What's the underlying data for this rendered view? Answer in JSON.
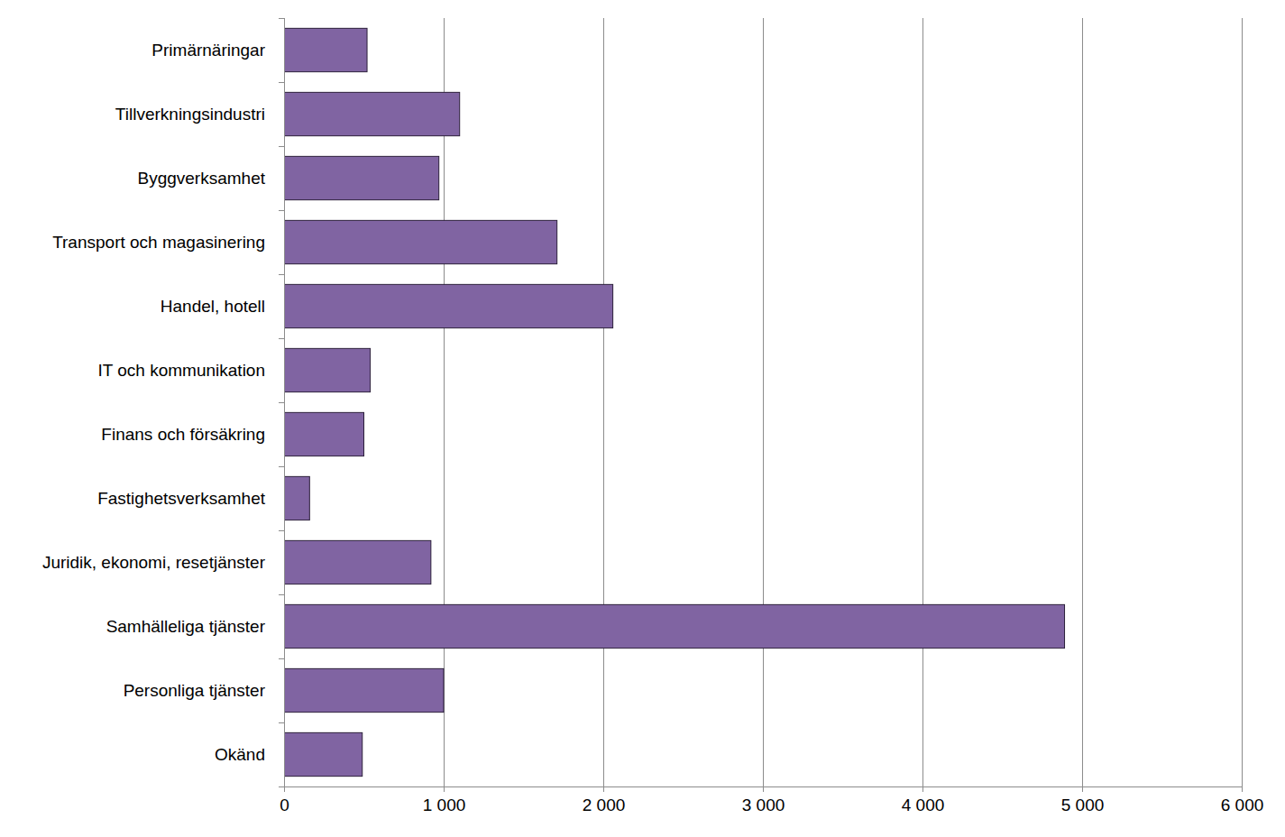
{
  "chart_data": {
    "type": "bar",
    "orientation": "horizontal",
    "categories": [
      "Primärnäringar",
      "Tillverkningsindustri",
      "Byggverksamhet",
      "Transport och magasinering",
      "Handel, hotell",
      "IT och kommunikation",
      "Finans och försäkring",
      "Fastighetsverksamhet",
      "Juridik, ekonomi, resetjänster",
      "Samhälleliga tjänster",
      "Personliga tjänster",
      "Okänd"
    ],
    "values": [
      520,
      1100,
      970,
      1710,
      2060,
      540,
      500,
      160,
      920,
      4890,
      1000,
      490
    ],
    "color": "#8064a2",
    "xlim": [
      0,
      6000
    ],
    "xticks": [
      0,
      {
        "value": 1000,
        "label": "1 000"
      },
      {
        "value": 2000,
        "label": "2 000"
      },
      {
        "value": 3000,
        "label": "3 000"
      },
      {
        "value": 4000,
        "label": "4 000"
      },
      {
        "value": 5000,
        "label": "5 000"
      },
      {
        "value": 6000,
        "label": "6 000"
      }
    ],
    "grid": true
  }
}
